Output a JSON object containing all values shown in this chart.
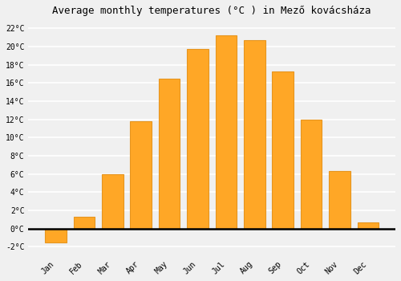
{
  "title": "Average monthly temperatures (°C ) in Mező kovácsháza",
  "months": [
    "Jan",
    "Feb",
    "Mar",
    "Apr",
    "May",
    "Jun",
    "Jul",
    "Aug",
    "Sep",
    "Oct",
    "Nov",
    "Dec"
  ],
  "values": [
    -1.5,
    1.3,
    6.0,
    11.8,
    16.5,
    19.7,
    21.2,
    20.7,
    17.3,
    12.0,
    6.3,
    0.7
  ],
  "bar_color": "#FFA726",
  "bar_edge_color": "#E69520",
  "background_color": "#f0f0f0",
  "plot_bg_color": "#f0f0f0",
  "grid_color": "#ffffff",
  "ylim": [
    -3,
    23
  ],
  "yticks": [
    -2,
    0,
    2,
    4,
    6,
    8,
    10,
    12,
    14,
    16,
    18,
    20,
    22
  ],
  "ytick_labels": [
    "-2°C",
    "0°C",
    "2°C",
    "4°C",
    "6°C",
    "8°C",
    "10°C",
    "12°C",
    "14°C",
    "16°C",
    "18°C",
    "20°C",
    "22°C"
  ],
  "title_fontsize": 9,
  "tick_fontsize": 7,
  "font_family": "monospace"
}
